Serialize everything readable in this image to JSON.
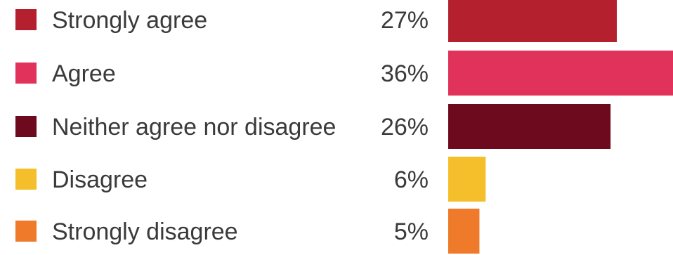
{
  "chart_data": {
    "type": "bar",
    "orientation": "horizontal",
    "categories": [
      "Strongly agree",
      "Agree",
      "Neither agree nor disagree",
      "Disagree",
      "Strongly disagree"
    ],
    "values": [
      27,
      36,
      26,
      6,
      5
    ],
    "value_labels": [
      "27%",
      "36%",
      "26%",
      "6%",
      "5%"
    ],
    "unit": "%",
    "colors": [
      "#b5202e",
      "#e0325a",
      "#6e0a1e",
      "#f4bf2a",
      "#ee7a2a"
    ],
    "xlim": [
      0,
      36
    ],
    "grid": false,
    "legend": "none",
    "title": "",
    "xlabel": "",
    "ylabel": ""
  }
}
